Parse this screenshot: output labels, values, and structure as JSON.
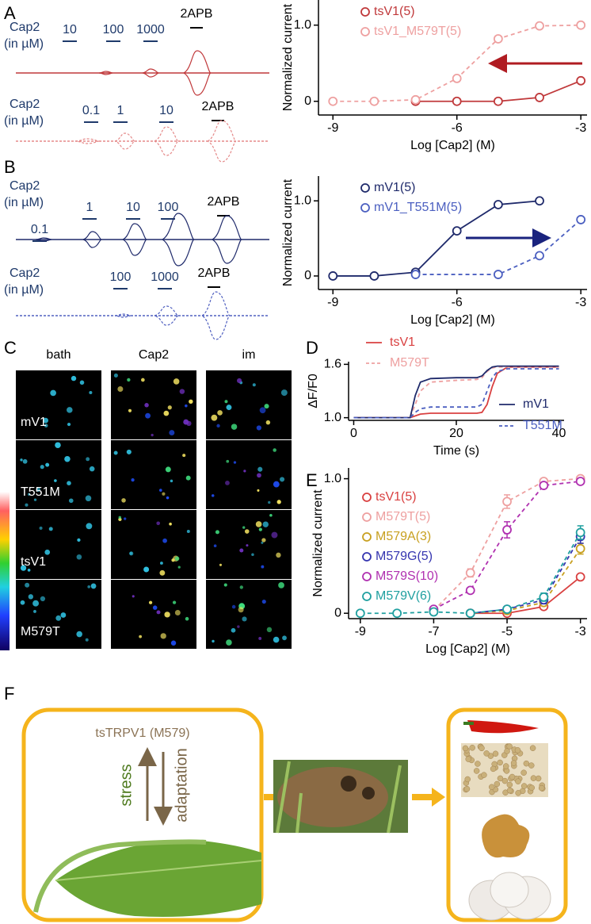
{
  "panel_labels": [
    "A",
    "B",
    "C",
    "D",
    "E",
    "F"
  ],
  "traces": [
    {
      "stimulus": "Cap2",
      "unit": "(in µM)",
      "doses": [
        "10",
        "100",
        "1000"
      ],
      "agonist": "2APB"
    },
    {
      "stimulus": "Cap2",
      "unit": "(in µM)",
      "doses": [
        "0.1",
        "1",
        "10"
      ],
      "agonist": "2APB"
    },
    {
      "stimulus": "Cap2",
      "unit": "(in µM)",
      "doses": [
        "0.1",
        "1",
        "10",
        "100"
      ],
      "agonist": "2APB"
    },
    {
      "stimulus": "Cap2",
      "unit": "(in µM)",
      "doses": [
        "100",
        "1000"
      ],
      "agonist": "2APB"
    }
  ],
  "imaging": {
    "columns": [
      "bath",
      "Cap2",
      "im"
    ],
    "rows": [
      "mV1",
      "T551M",
      "tsV1",
      "M579T"
    ]
  },
  "chart_data": [
    {
      "type": "line",
      "marker": "circle",
      "xlabel": "Log [Cap2] (M)",
      "ylabel": "Normalized current",
      "xlim": [
        -9.35,
        -2.85
      ],
      "ylim": [
        -0.18,
        1.33
      ],
      "xticks": [
        -9,
        -6,
        -3
      ],
      "yticks": [
        0,
        {
          "value": 1,
          "label": "1.0"
        }
      ],
      "series": [
        {
          "name": "tsV1(5)",
          "color": "#c0393b",
          "dash": false,
          "x": [
            -7,
            -6,
            -5,
            -4,
            -3
          ],
          "values": [
            0,
            0,
            0,
            0.05,
            0.27
          ]
        },
        {
          "name": "tsV1_M579T(5)",
          "color": "#eea0a0",
          "dash": true,
          "x": [
            -9,
            -8,
            -7,
            -6,
            -5,
            -4,
            -3
          ],
          "values": [
            0,
            0,
            0.02,
            0.3,
            0.82,
            0.99,
            1.0
          ]
        }
      ]
    },
    {
      "type": "line",
      "marker": "circle",
      "xlabel": "Log [Cap2] (M)",
      "ylabel": "Normalized current",
      "xlim": [
        -9.35,
        -2.85
      ],
      "ylim": [
        -0.18,
        1.33
      ],
      "xticks": [
        -9,
        -6,
        -3
      ],
      "yticks": [
        0,
        {
          "value": 1,
          "label": "1.0"
        }
      ],
      "series": [
        {
          "name": "mV1(5)",
          "color": "#1f2a6b",
          "dash": false,
          "x": [
            -9,
            -8,
            -7,
            -6,
            -5,
            -4
          ],
          "values": [
            0,
            0,
            0.05,
            0.6,
            0.95,
            1.0
          ]
        },
        {
          "name": "mV1_T551M(5)",
          "color": "#4b5fc0",
          "dash": true,
          "x": [
            -7,
            -5,
            -4,
            -3
          ],
          "values": [
            0.02,
            0.02,
            0.27,
            0.75
          ]
        }
      ]
    },
    {
      "type": "line",
      "xlabel": "Time (s)",
      "ylabel": "ΔF/F0",
      "xlim": [
        -1,
        41
      ],
      "ylim": [
        0.97,
        1.63
      ],
      "xticks": [
        0,
        20,
        40
      ],
      "yticks": [
        {
          "value": 1,
          "label": "1.0"
        },
        {
          "value": 1.6,
          "label": "1.6"
        }
      ],
      "x": [
        0,
        10,
        11,
        12,
        13,
        15,
        20,
        24,
        25,
        26,
        27,
        28,
        30,
        35,
        40
      ],
      "series": [
        {
          "name": "tsV1",
          "color": "#d94040",
          "dash": false,
          "values": [
            1.0,
            1.0,
            1.0,
            1.02,
            1.04,
            1.05,
            1.05,
            1.05,
            1.06,
            1.15,
            1.35,
            1.5,
            1.57,
            1.57,
            1.57
          ]
        },
        {
          "name": "M579T",
          "color": "#eea0a0",
          "dash": true,
          "values": [
            1.0,
            1.0,
            1.0,
            1.15,
            1.3,
            1.4,
            1.42,
            1.43,
            1.45,
            1.52,
            1.56,
            1.57,
            1.57,
            1.57,
            1.57
          ]
        },
        {
          "name": "mV1",
          "color": "#1f2a6b",
          "dash": false,
          "values": [
            1.0,
            1.0,
            1.0,
            1.25,
            1.4,
            1.44,
            1.45,
            1.45,
            1.47,
            1.53,
            1.57,
            1.58,
            1.58,
            1.58,
            1.58
          ]
        },
        {
          "name": "T551M",
          "color": "#4b5fc0",
          "dash": true,
          "values": [
            1.0,
            1.0,
            1.0,
            1.06,
            1.1,
            1.12,
            1.12,
            1.12,
            1.15,
            1.3,
            1.45,
            1.52,
            1.55,
            1.55,
            1.55
          ]
        }
      ]
    },
    {
      "type": "line",
      "marker": "circle",
      "xlabel": "Log [Cap2] (M)",
      "ylabel": "Normalized current",
      "xlim": [
        -9.32,
        -2.82
      ],
      "ylim": [
        -0.04,
        1.08
      ],
      "xticks": [
        -9,
        -7,
        -5,
        -3
      ],
      "yticks": [
        0,
        {
          "value": 1,
          "label": "1.0"
        }
      ],
      "series": [
        {
          "name": "tsV1(5)",
          "color": "#d94040",
          "dash": false,
          "x": [
            -6,
            -5,
            -4,
            -3
          ],
          "values": [
            0,
            0,
            0.05,
            0.27
          ],
          "errors": [
            null,
            null,
            null,
            0.02
          ]
        },
        {
          "name": "M579T(5)",
          "color": "#eea0a0",
          "dash": true,
          "x": [
            -7,
            -6,
            -5,
            -4,
            -3
          ],
          "values": [
            0.02,
            0.3,
            0.83,
            0.98,
            1.0
          ],
          "errors": [
            null,
            0.03,
            0.05,
            0.02,
            0.02
          ]
        },
        {
          "name": "M579A(3)",
          "color": "#c8a020",
          "dash": true,
          "x": [
            -6,
            -5,
            -4,
            -3
          ],
          "values": [
            0,
            0.02,
            0.08,
            0.48
          ],
          "errors": [
            null,
            null,
            0.02,
            0.04
          ]
        },
        {
          "name": "M579G(5)",
          "color": "#3535b0",
          "dash": true,
          "x": [
            -6,
            -5,
            -4,
            -3
          ],
          "values": [
            0,
            0.03,
            0.1,
            0.57
          ],
          "errors": [
            null,
            null,
            0.03,
            0.05
          ]
        },
        {
          "name": "M579S(10)",
          "color": "#b030b0",
          "dash": true,
          "x": [
            -7,
            -6,
            -5,
            -4,
            -3
          ],
          "values": [
            0.03,
            0.17,
            0.62,
            0.95,
            0.98
          ],
          "errors": [
            null,
            0.02,
            0.06,
            0.02,
            0.02
          ]
        },
        {
          "name": "M579V(6)",
          "color": "#20a0a0",
          "dash": true,
          "x": [
            -9,
            -8,
            -7,
            -6,
            -5,
            -4,
            -3
          ],
          "values": [
            0,
            0,
            0.01,
            0,
            0.03,
            0.12,
            0.6
          ],
          "errors": [
            null,
            null,
            null,
            null,
            null,
            0.03,
            0.05
          ]
        }
      ]
    }
  ],
  "model": {
    "title": "tsTRPV1 (M579)",
    "up": "stress",
    "down": "adaptation"
  }
}
